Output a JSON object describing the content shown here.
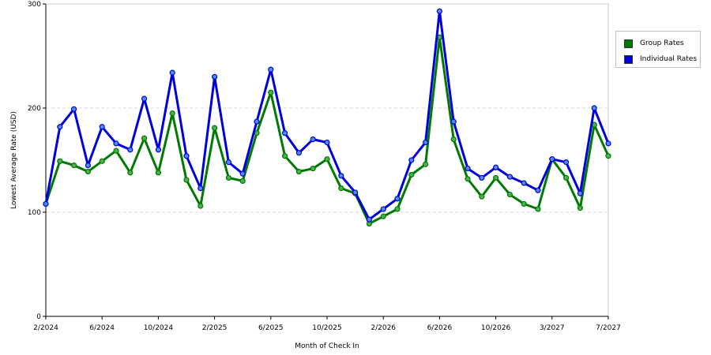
{
  "chart_data": {
    "type": "line",
    "title": "",
    "xlabel": "Month of Check In",
    "ylabel": "Lowest Average Rate (USD)",
    "ylim": [
      0,
      300
    ],
    "y_ticks": [
      "0",
      "100",
      "200",
      "300"
    ],
    "x_ticks": [
      "2/2024",
      "6/2024",
      "10/2024",
      "2/2025",
      "6/2025",
      "10/2025",
      "2/2026",
      "6/2026",
      "10/2026",
      "3/2027",
      "7/2027"
    ],
    "grid": "horizontal dashed",
    "legend_position": "right",
    "x": [
      "2/2024",
      "3/2024",
      "4/2024",
      "5/2024",
      "6/2024",
      "7/2024",
      "8/2024",
      "9/2024",
      "10/2024",
      "11/2024",
      "12/2024",
      "1/2025",
      "2/2025",
      "3/2025",
      "4/2025",
      "5/2025",
      "6/2025",
      "7/2025",
      "8/2025",
      "9/2025",
      "10/2025",
      "11/2025",
      "12/2025",
      "1/2026",
      "2/2026",
      "3/2026",
      "4/2026",
      "5/2026",
      "6/2026",
      "7/2026",
      "8/2026",
      "9/2026",
      "10/2026",
      "11/2026",
      "12/2026",
      "1/2027",
      "3/2027",
      "4/2027",
      "5/2027",
      "6/2027",
      "7/2027"
    ],
    "series": [
      {
        "name": "Group Rates",
        "color": "#007a00",
        "values": [
          108,
          149,
          145,
          139,
          149,
          159,
          138,
          171,
          138,
          195,
          131,
          106,
          181,
          133,
          130,
          176,
          215,
          154,
          139,
          142,
          151,
          123,
          118,
          89,
          96,
          103,
          136,
          146,
          268,
          170,
          132,
          115,
          133,
          117,
          108,
          103,
          151,
          133,
          104,
          184,
          154
        ]
      },
      {
        "name": "Individual Rates",
        "color": "#0000dd",
        "values": [
          108,
          182,
          199,
          145,
          182,
          166,
          160,
          209,
          160,
          234,
          154,
          123,
          230,
          148,
          137,
          187,
          237,
          176,
          157,
          170,
          167,
          135,
          119,
          93,
          103,
          113,
          150,
          167,
          293,
          187,
          142,
          133,
          143,
          134,
          128,
          121,
          151,
          148,
          118,
          200,
          166
        ]
      }
    ]
  }
}
